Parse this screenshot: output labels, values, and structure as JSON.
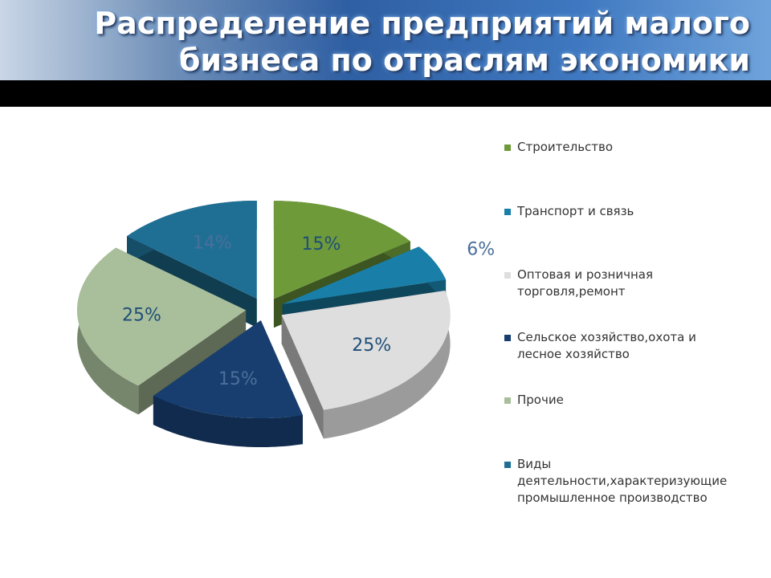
{
  "chart_data": {
    "type": "pie",
    "title": "Распределение предприятий малого бизнеса по отраслям экономики",
    "categories": [
      "Строительство",
      "Транспорт и связь",
      "Оптовая и розничная торговля,ремонт",
      "Сельское хозяйство,охота и лесное хозяйство",
      "Прочие",
      "Виды деятельности,характеризующие промышленное производство"
    ],
    "values": [
      15,
      6,
      25,
      15,
      25,
      14
    ],
    "value_labels": [
      "15%",
      "6%",
      "25%",
      "15%",
      "25%",
      "14%"
    ],
    "colors": [
      "#6e9a3a",
      "#1a7fa8",
      "#dedede",
      "#173e6e",
      "#a9bf9b",
      "#1f6f94"
    ],
    "legend": "right"
  }
}
